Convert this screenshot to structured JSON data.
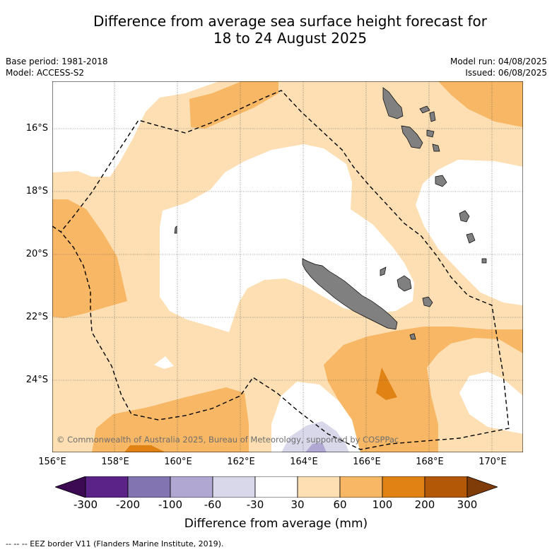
{
  "title": {
    "line1": "Difference from average sea surface height forecast for",
    "line2": "18 to 24 August 2025"
  },
  "meta": {
    "base_period": "Base period: 1981-2018",
    "model": "Model: ACCESS-S2",
    "model_run": "Model run: 04/08/2025",
    "issued": "Issued: 06/08/2025"
  },
  "map": {
    "lat_labels": [
      "16°S",
      "18°S",
      "20°S",
      "22°S",
      "24°S"
    ],
    "lon_labels": [
      "156°E",
      "158°E",
      "160°E",
      "162°E",
      "164°E",
      "166°E",
      "168°E",
      "170°E"
    ],
    "copyright": "© Commonwealth of Australia 2025, Bureau of Meteorology, supported by COSPPac",
    "land_color": "#808080"
  },
  "colorbar": {
    "ticks": [
      "-300",
      "-200",
      "-100",
      "-60",
      "-30",
      "30",
      "60",
      "100",
      "200",
      "300"
    ],
    "colors": [
      "#3b0a52",
      "#5b2388",
      "#8274b0",
      "#b0a8d2",
      "#d8d8ea",
      "#ffffff",
      "#fddfb3",
      "#f8b764",
      "#e08214",
      "#b35806",
      "#7f3b08"
    ],
    "label": "Difference from average (mm)"
  },
  "footnote": "--  --  -- EEZ border V11 (Flanders Marine Institute, 2019)."
}
